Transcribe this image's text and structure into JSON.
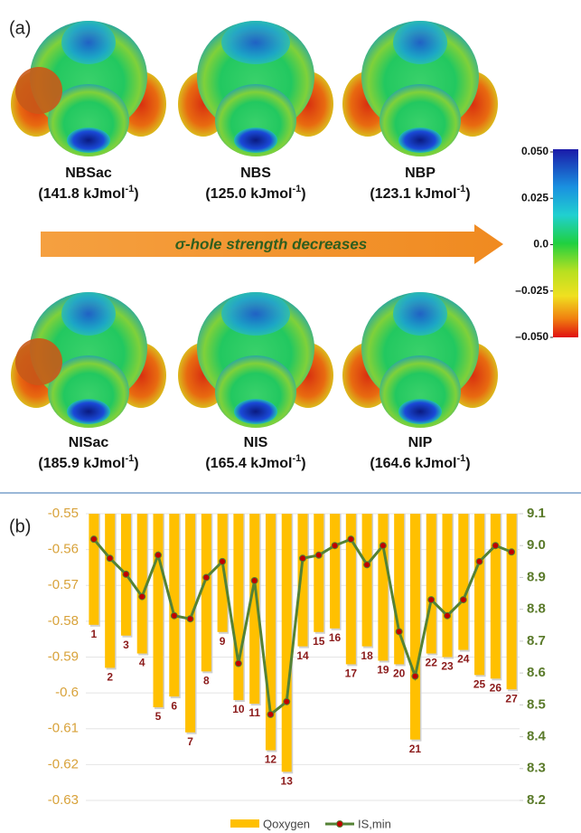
{
  "panel_a": {
    "label": "(a)",
    "molecules": [
      {
        "name": "NBSac",
        "energy": "(141.8 kJmol",
        "sup": "-1",
        "close": ")"
      },
      {
        "name": "NBS",
        "energy": "(125.0 kJmol",
        "sup": "-1",
        "close": ")"
      },
      {
        "name": "NBP",
        "energy": "(123.1 kJmol",
        "sup": "-1",
        "close": ")"
      },
      {
        "name": "NISac",
        "energy": "(185.9 kJmol",
        "sup": "-1",
        "close": ")"
      },
      {
        "name": "NIS",
        "energy": "(165.4 kJmol",
        "sup": "-1",
        "close": ")"
      },
      {
        "name": "NIP",
        "energy": "(164.6 kJmol",
        "sup": "-1",
        "close": ")"
      }
    ],
    "arrow_text": "σ-hole strength decreases",
    "colorbar": {
      "lim": [
        -0.05,
        0.05
      ],
      "ticks": [
        {
          "value": 0.05,
          "label": "0.050"
        },
        {
          "value": 0.025,
          "label": "0.025"
        },
        {
          "value": 0,
          "label": "0.0"
        },
        {
          "value": -0.025,
          "label": "–0.025"
        },
        {
          "value": -0.05,
          "label": "–0.050"
        }
      ]
    }
  },
  "chart_data": {
    "type": "bar",
    "panel_label": "(b)",
    "categories": [
      "1",
      "2",
      "3",
      "4",
      "5",
      "6",
      "7",
      "8",
      "9",
      "10",
      "11",
      "12",
      "13",
      "14",
      "15",
      "16",
      "17",
      "18",
      "19",
      "20",
      "21",
      "22",
      "23",
      "24",
      "25",
      "26",
      "27"
    ],
    "series": [
      {
        "name": "Qoxygen",
        "type": "bar",
        "color": "#ffc000",
        "values": [
          -0.581,
          -0.593,
          -0.584,
          -0.589,
          -0.604,
          -0.601,
          -0.611,
          -0.594,
          -0.583,
          -0.602,
          -0.603,
          -0.616,
          -0.622,
          -0.587,
          -0.583,
          -0.582,
          -0.592,
          -0.587,
          -0.591,
          -0.592,
          -0.613,
          -0.589,
          -0.59,
          -0.588,
          -0.595,
          -0.596,
          -0.599
        ]
      },
      {
        "name": "IS,min",
        "type": "line",
        "axis": "y2",
        "color": "#548235",
        "marker_color": "#c00000",
        "values": [
          9.02,
          8.96,
          8.91,
          8.84,
          8.97,
          8.78,
          8.77,
          8.9,
          8.95,
          8.63,
          8.89,
          8.47,
          8.51,
          8.96,
          8.97,
          9.0,
          9.02,
          8.94,
          9.0,
          8.73,
          8.59,
          8.83,
          8.78,
          8.83,
          8.95,
          9.0,
          8.98
        ]
      }
    ],
    "ylim": [
      -0.63,
      -0.55
    ],
    "yticks": [
      -0.55,
      -0.56,
      -0.57,
      -0.58,
      -0.59,
      -0.6,
      -0.61,
      -0.62,
      -0.63
    ],
    "y2lim": [
      8.2,
      9.1
    ],
    "y2ticks": [
      9.1,
      {
        "value": 9,
        "label": "9.0"
      },
      8.9,
      8.8,
      8.7,
      8.6,
      8.5,
      8.4,
      8.3,
      8.2
    ],
    "grid": true,
    "legend": "bottom"
  }
}
